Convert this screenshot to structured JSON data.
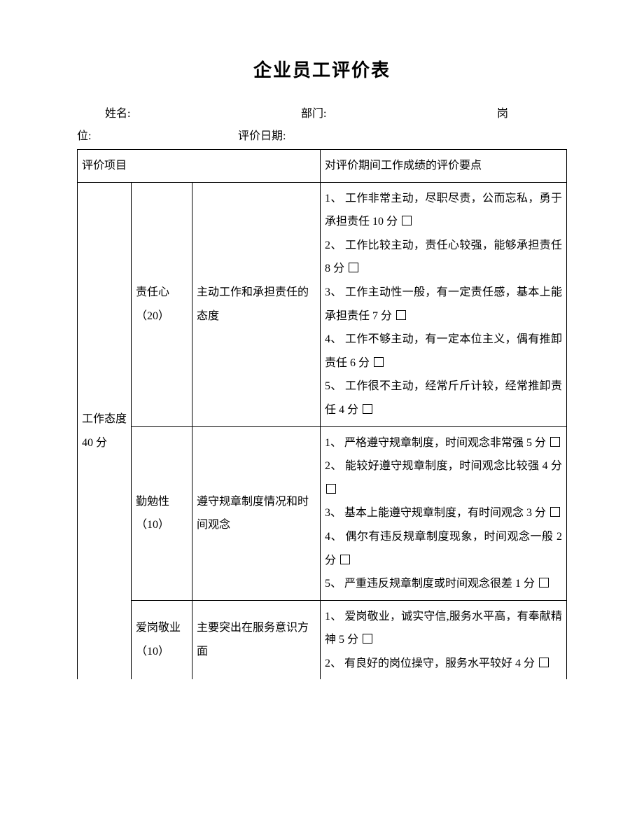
{
  "title": "企业员工评价表",
  "header": {
    "name_label": "姓名:",
    "dept_label": "部门:",
    "position_label_part1": "岗",
    "position_label_part2": "位:",
    "date_label": "评价日期:"
  },
  "table": {
    "head": {
      "item_label": "评价项目",
      "points_label": "对评价期间工作成绩的评价要点"
    },
    "category": {
      "name": "工作态度 40 分"
    },
    "rows": [
      {
        "sub": "责任心（20）",
        "desc": "主动工作和承担责任的态度",
        "criteria": [
          "1、 工作非常主动，尽职尽责，公而忘私，勇于承担责任 10 分",
          "2、 工作比较主动，责任心较强，能够承担责任 8 分",
          "3、 工作主动性一般，有一定责任感，基本上能承担责任 7 分",
          "4、 工作不够主动，有一定本位主义，偶有推卸责任 6 分",
          "5、 工作很不主动，经常斤斤计较，经常推卸责任 4 分"
        ]
      },
      {
        "sub": "勤勉性（10）",
        "desc": "遵守规章制度情况和时间观念",
        "criteria": [
          "1、 严格遵守规章制度，时间观念非常强 5 分",
          "2、 能较好遵守规章制度，时间观念比较强 4 分",
          "3、 基本上能遵守规章制度，有时间观念 3 分",
          "4、 偶尔有违反规章制度现象，时间观念一般 2 分",
          "5、 严重违反规章制度或时间观念很差 1 分"
        ]
      },
      {
        "sub": "爱岗敬业（10）",
        "desc": "主要突出在服务意识方面",
        "criteria": [
          "1、 爱岗敬业，诚实守信,服务水平高，有奉献精神 5 分",
          "2、 有良好的岗位操守，服务水平较好 4 分"
        ]
      }
    ]
  }
}
